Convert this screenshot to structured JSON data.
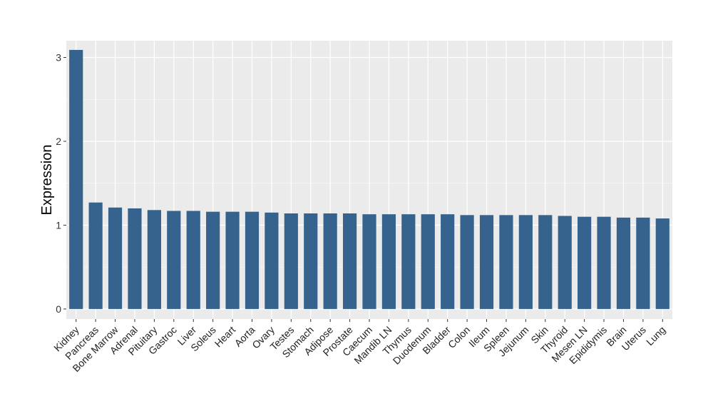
{
  "colors": {
    "panel_background": "#EBEBEB",
    "grid_major": "#FFFFFF",
    "bar_fill": "#36638D",
    "tick_mark": "#333333"
  },
  "chart_data": {
    "type": "bar",
    "title": "",
    "xlabel": "",
    "ylabel": "Expression",
    "ylim": [
      -0.12,
      3.2
    ],
    "yticks": [
      0,
      1,
      2,
      3
    ],
    "grid": true,
    "categories": [
      "Kidney",
      "Pancreas",
      "Bone Marrow",
      "Adrenal",
      "Pituitary",
      "Gastroc",
      "Liver",
      "Soleus",
      "Heart",
      "Aorta",
      "Ovary",
      "Testes",
      "Stomach",
      "Adipose",
      "Prostate",
      "Caecum",
      "Mandib LN",
      "Thymus",
      "Duodenum",
      "Bladder",
      "Colon",
      "Ileum",
      "Spleen",
      "Jejunum",
      "Skin",
      "Thyroid",
      "Mesen LN",
      "Epididymis",
      "Brain",
      "Uterus",
      "Lung"
    ],
    "values": [
      3.09,
      1.27,
      1.21,
      1.2,
      1.18,
      1.17,
      1.17,
      1.16,
      1.16,
      1.16,
      1.15,
      1.14,
      1.14,
      1.14,
      1.14,
      1.13,
      1.13,
      1.13,
      1.13,
      1.13,
      1.12,
      1.12,
      1.12,
      1.12,
      1.12,
      1.11,
      1.1,
      1.1,
      1.09,
      1.09,
      1.08
    ]
  }
}
